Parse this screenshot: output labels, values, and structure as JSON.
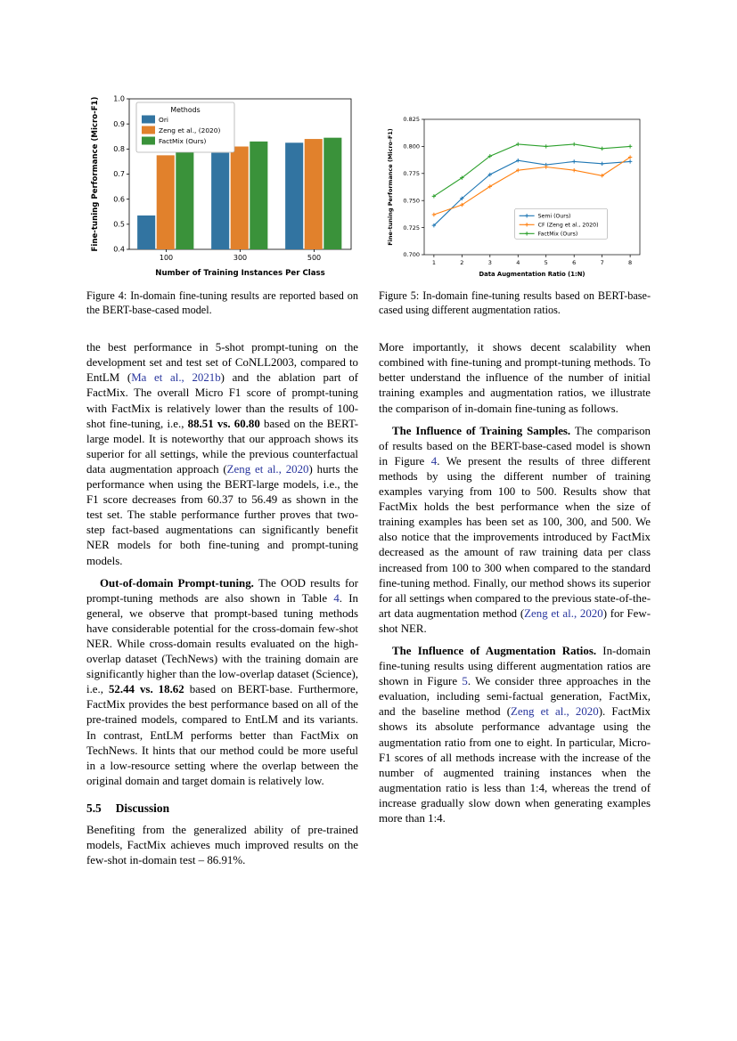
{
  "colors": {
    "citation": "#28359d",
    "bar_blue": "#3274a1",
    "bar_orange": "#e1812c",
    "bar_green": "#3a923a",
    "line_blue": "#1f77b4",
    "line_orange": "#ff7f0e",
    "line_green": "#2ca02c"
  },
  "figures": {
    "fig4": {
      "caption_label": "Figure 4:",
      "caption_text": "In-domain fine-tuning results are reported based on the BERT-base-cased model."
    },
    "fig5": {
      "caption_label": "Figure 5:",
      "caption_text": "In-domain fine-tuning results based on BERT-base-cased using different augmentation ratios."
    }
  },
  "chart_data": [
    {
      "id": "fig4",
      "type": "bar",
      "title": "",
      "categories": [
        "100",
        "300",
        "500"
      ],
      "series": [
        {
          "name": "Ori",
          "color": "#3274a1",
          "values": [
            0.535,
            0.785,
            0.825
          ]
        },
        {
          "name": "Zeng et al., (2020)",
          "color": "#e1812c",
          "values": [
            0.775,
            0.81,
            0.84
          ]
        },
        {
          "name": "FactMix (Ours)",
          "color": "#3a923a",
          "values": [
            0.8,
            0.83,
            0.845
          ]
        }
      ],
      "xlabel": "Number of Training Instances Per Class",
      "ylabel": "Fine-tuning Performance (Micro-F1)",
      "ylim": [
        0.4,
        1.0
      ],
      "yticks": [
        0.4,
        0.5,
        0.6,
        0.7,
        0.8,
        0.9,
        1.0
      ],
      "legend_title": "Methods",
      "legend_position": "upper left",
      "grid": false
    },
    {
      "id": "fig5",
      "type": "line",
      "title": "",
      "x": [
        1,
        2,
        3,
        4,
        5,
        6,
        7,
        8
      ],
      "series": [
        {
          "name": "Semi (Ours)",
          "color": "#1f77b4",
          "values": [
            0.727,
            0.752,
            0.774,
            0.787,
            0.783,
            0.786,
            0.784,
            0.786
          ]
        },
        {
          "name": "CF (Zeng et al., 2020)",
          "color": "#ff7f0e",
          "values": [
            0.737,
            0.746,
            0.763,
            0.778,
            0.781,
            0.778,
            0.773,
            0.79
          ]
        },
        {
          "name": "FactMix (Ours)",
          "color": "#2ca02c",
          "values": [
            0.754,
            0.771,
            0.791,
            0.802,
            0.8,
            0.802,
            0.798,
            0.8
          ]
        }
      ],
      "xlabel": "Data Augmentation Ratio (1:N)",
      "ylabel": "Fine-tuning Performance (Micro-F1)",
      "ylim": [
        0.7,
        0.825
      ],
      "yticks": [
        "0.700",
        "0.725",
        "0.750",
        "0.775",
        "0.800",
        "0.825"
      ],
      "legend_position": "center right",
      "grid": false
    }
  ],
  "columns": {
    "left": [
      {
        "type": "p",
        "indent": false,
        "lead": false,
        "segments": [
          {
            "text": "the best performance in 5-shot prompt-tuning on the development set and test set of CoNLL2003, compared to EntLM ("
          },
          {
            "text": "Ma et al., 2021b",
            "cite": true
          },
          {
            "text": ") and the ablation part of FactMix. The overall Micro F1 score of prompt-tuning with FactMix is relatively lower than the results of 100-shot fine-tuning, i.e., "
          },
          {
            "text": "88.51 vs. 60.80",
            "bold": true
          },
          {
            "text": " based on the BERT-large model. It is noteworthy that our approach shows its superior for all settings, while the previous counterfactual data augmentation approach ("
          },
          {
            "text": "Zeng et al., 2020",
            "cite": true
          },
          {
            "text": ") hurts the performance when using the BERT-large models, i.e., the F1 score decreases from 60.37 to 56.49 as shown in the test set. The stable performance further proves that two-step fact-based augmentations can significantly benefit NER models for both fine-tuning and prompt-tuning models."
          }
        ]
      },
      {
        "type": "p",
        "indent": true,
        "lead": true,
        "segments": [
          {
            "text": "Out-of-domain Prompt-tuning.",
            "bold": true
          },
          {
            "text": " The OOD results for prompt-tuning methods are also shown in Table "
          },
          {
            "text": "4",
            "cite": true
          },
          {
            "text": ". In general, we observe that prompt-based tuning methods have considerable potential for the cross-domain few-shot NER. While cross-domain results evaluated on the high-overlap dataset (TechNews) with the training domain are significantly higher than the low-overlap dataset (Science), i.e., "
          },
          {
            "text": "52.44 vs. 18.62",
            "bold": true
          },
          {
            "text": " based on BERT-base. Furthermore, FactMix provides the best performance based on all of the pre-trained models, compared to EntLM and its variants. In contrast, EntLM performs better than FactMix on TechNews. It hints that our method could be more useful in a low-resource setting where the overlap between the original domain and target domain is relatively low."
          }
        ]
      },
      {
        "type": "heading",
        "number": "5.5",
        "title": "Discussion"
      },
      {
        "type": "p",
        "indent": false,
        "lead": false,
        "segments": [
          {
            "text": "Benefiting from the generalized ability of pre-trained models, FactMix achieves much improved results on the few-shot in-domain test – 86.91%."
          }
        ]
      }
    ],
    "right": [
      {
        "type": "p",
        "indent": false,
        "lead": false,
        "segments": [
          {
            "text": "More importantly, it shows decent scalability when combined with fine-tuning and prompt-tuning methods. To better understand the influence of the number of initial training examples and augmentation ratios, we illustrate the comparison of in-domain fine-tuning as follows."
          }
        ]
      },
      {
        "type": "p",
        "indent": true,
        "lead": true,
        "segments": [
          {
            "text": "The Influence of Training Samples.",
            "bold": true
          },
          {
            "text": " The comparison of results based on the BERT-base-cased model is shown in Figure "
          },
          {
            "text": "4",
            "cite": true
          },
          {
            "text": ". We present the results of three different methods by using the different number of training examples varying from 100 to 500. Results show that FactMix holds the best performance when the size of training examples has been set as 100, 300, and 500. We also notice that the improvements introduced by FactMix decreased as the amount of raw training data per class increased from 100 to 300 when compared to the standard fine-tuning method. Finally, our method shows its superior for all settings when compared to the previous state-of-the-art data augmentation method ("
          },
          {
            "text": "Zeng et al., 2020",
            "cite": true
          },
          {
            "text": ") for Few-shot NER."
          }
        ]
      },
      {
        "type": "p",
        "indent": true,
        "lead": true,
        "segments": [
          {
            "text": "The Influence of Augmentation Ratios.",
            "bold": true
          },
          {
            "text": " In-domain fine-tuning results using different augmentation ratios are shown in Figure "
          },
          {
            "text": "5",
            "cite": true
          },
          {
            "text": ". We consider three approaches in the evaluation, including semi-factual generation, FactMix, and the baseline method ("
          },
          {
            "text": "Zeng et al., 2020",
            "cite": true
          },
          {
            "text": "). FactMix shows its absolute performance advantage using the augmentation ratio from one to eight. In particular, Micro-F1 scores of all methods increase with the increase of the number of augmented training instances when the augmentation ratio is less than 1:4, whereas the trend of increase gradually slow down when generating examples more than 1:4."
          }
        ]
      }
    ]
  }
}
